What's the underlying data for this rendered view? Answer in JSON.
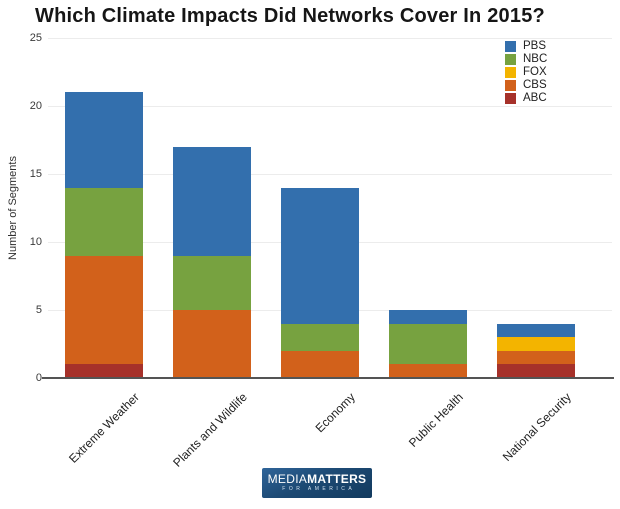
{
  "chart_data": {
    "type": "bar",
    "stacked": true,
    "title": "Which Climate Impacts Did Networks Cover In 2015?",
    "xlabel": "",
    "ylabel": "Number of Segments",
    "ylim": [
      0,
      25
    ],
    "yticks": [
      0,
      5,
      10,
      15,
      20,
      25
    ],
    "grid": true,
    "legend_position": "top-right",
    "categories": [
      "Extreme Weather",
      "Plants and Wildlife",
      "Economy",
      "Public Health",
      "National Security"
    ],
    "series": [
      {
        "name": "ABC",
        "color": "#a6312a",
        "values": [
          1,
          0,
          0,
          0,
          1
        ]
      },
      {
        "name": "CBS",
        "color": "#d2611b",
        "values": [
          8,
          5,
          2,
          1,
          1
        ]
      },
      {
        "name": "FOX",
        "color": "#f3b400",
        "values": [
          0,
          0,
          0,
          0,
          1
        ]
      },
      {
        "name": "NBC",
        "color": "#77a240",
        "values": [
          5,
          4,
          2,
          3,
          0
        ]
      },
      {
        "name": "PBS",
        "color": "#336fad",
        "values": [
          7,
          8,
          10,
          1,
          1
        ]
      }
    ],
    "totals": [
      21,
      17,
      14,
      5,
      4
    ],
    "legend": [
      {
        "label": "PBS",
        "color": "#336fad"
      },
      {
        "label": "NBC",
        "color": "#77a240"
      },
      {
        "label": "FOX",
        "color": "#f3b400"
      },
      {
        "label": "CBS",
        "color": "#d2611b"
      },
      {
        "label": "ABC",
        "color": "#a6312a"
      }
    ]
  },
  "logo": {
    "media": "MEDIA",
    "matters": "MATTERS",
    "tagline": "FOR AMERICA"
  }
}
